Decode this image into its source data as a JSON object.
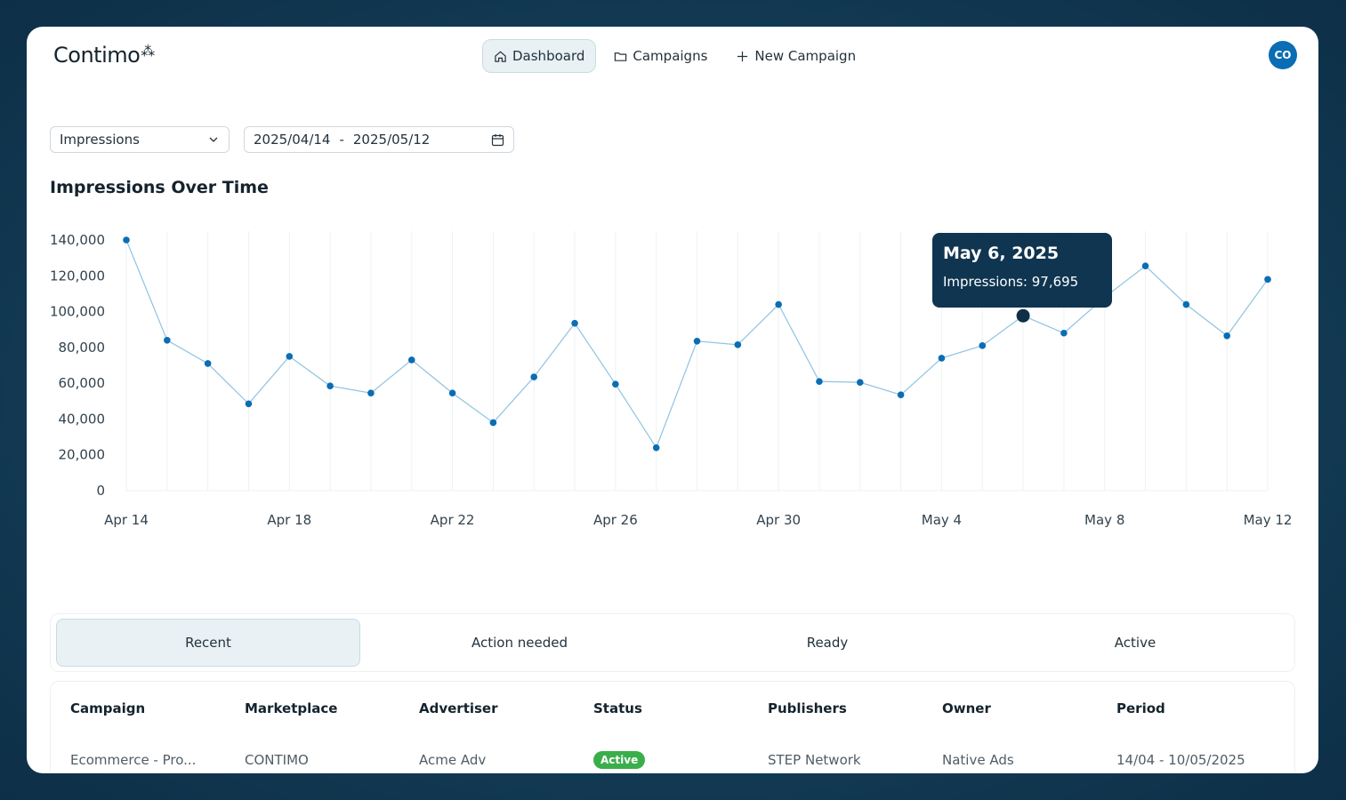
{
  "app": {
    "logo": "Contimo",
    "logo_mark": "⁂",
    "avatar": "CO"
  },
  "nav": [
    {
      "label": "Dashboard",
      "icon": "home-icon",
      "active": true
    },
    {
      "label": "Campaigns",
      "icon": "folder-icon",
      "active": false
    },
    {
      "label": "New Campaign",
      "icon": "plus-icon",
      "active": false
    }
  ],
  "filters": {
    "metric": "Impressions",
    "date_from": "2025/04/14",
    "date_sep": "-",
    "date_to": "2025/05/12"
  },
  "chart_title": "Impressions Over Time",
  "tooltip": {
    "date": "May 6, 2025",
    "label": "Impressions: 97,695"
  },
  "chart_data": {
    "type": "line",
    "title": "Impressions Over Time",
    "xlabel": "",
    "ylabel": "",
    "ylim": [
      0,
      140000
    ],
    "yticks": [
      "0",
      "20,000",
      "40,000",
      "60,000",
      "80,000",
      "100,000",
      "120,000",
      "140,000"
    ],
    "xtick_labels": [
      "Apr 14",
      "Apr 18",
      "Apr 22",
      "Apr 26",
      "Apr 30",
      "May 4",
      "May 8",
      "May 12"
    ],
    "grid": true,
    "highlight_index": 22,
    "series": [
      {
        "x": [
          "2025-04-14",
          "2025-04-15",
          "2025-04-16",
          "2025-04-17",
          "2025-04-18",
          "2025-04-19",
          "2025-04-20",
          "2025-04-21",
          "2025-04-22",
          "2025-04-23",
          "2025-04-24",
          "2025-04-25",
          "2025-04-26",
          "2025-04-27",
          "2025-04-28",
          "2025-04-29",
          "2025-04-30",
          "2025-05-01",
          "2025-05-02",
          "2025-05-03",
          "2025-05-04",
          "2025-05-05",
          "2025-05-06",
          "2025-05-07",
          "2025-05-08",
          "2025-05-09",
          "2025-05-10",
          "2025-05-11",
          "2025-05-12"
        ],
        "values": [
          140000,
          84000,
          71000,
          48500,
          75000,
          58500,
          54500,
          73000,
          54500,
          38000,
          63500,
          93500,
          59500,
          24000,
          83500,
          81500,
          104000,
          61000,
          60500,
          53500,
          74000,
          81000,
          97695,
          88000,
          108000,
          125500,
          104000,
          86500,
          118000
        ]
      }
    ],
    "colors": {
      "line": "#8fc3e2",
      "point": "#0b6db3",
      "highlight": "#0d2f47",
      "grid": "#eef2f4"
    }
  },
  "tabs": [
    "Recent",
    "Action needed",
    "Ready",
    "Active"
  ],
  "table": {
    "headers": [
      "Campaign",
      "Marketplace",
      "Advertiser",
      "Status",
      "Publishers",
      "Owner",
      "Period"
    ],
    "row": {
      "campaign": "Ecommerce - Pro...",
      "marketplace": "CONTIMO",
      "advertiser": "Acme Adv",
      "status": "Active",
      "publishers": "STEP Network",
      "owner": "Native Ads",
      "period": "14/04 - 10/05/2025"
    }
  }
}
